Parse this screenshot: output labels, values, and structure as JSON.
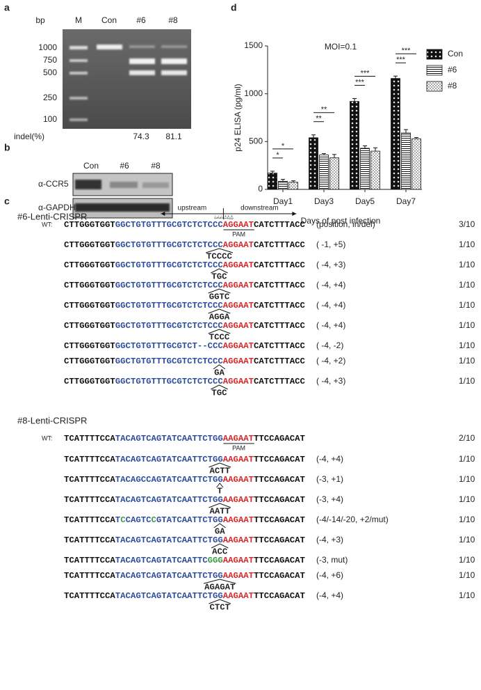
{
  "panel_a": {
    "label": "a",
    "unit": "bp",
    "lanes": [
      "M",
      "Con",
      "#6",
      "#8"
    ],
    "ladder": [
      1000,
      750,
      500,
      250,
      100
    ],
    "indel_label": "indel(%)",
    "indel": [
      74.3,
      81.1
    ]
  },
  "panel_b": {
    "label": "b",
    "lanes": [
      "Con",
      "#6",
      "#8"
    ],
    "rows": [
      "α-CCR5",
      "α-GAPDH"
    ]
  },
  "chart_data": {
    "type": "bar",
    "label": "d",
    "title": "MOI=0.1",
    "ylabel": "p24 ELISA (pg/ml)",
    "xlabel": "Days of post infection",
    "categories": [
      "Day1",
      "Day3",
      "Day5",
      "Day7"
    ],
    "series": [
      {
        "name": "Con",
        "pattern": "crosshatch",
        "values": [
          170,
          540,
          920,
          1160
        ],
        "errors": [
          20,
          30,
          30,
          25
        ]
      },
      {
        "name": "#6",
        "pattern": "hlines",
        "values": [
          85,
          360,
          430,
          590
        ],
        "errors": [
          20,
          15,
          25,
          35
        ]
      },
      {
        "name": "#8",
        "pattern": "dots",
        "values": [
          75,
          330,
          400,
          530
        ],
        "errors": [
          15,
          35,
          35,
          12
        ]
      }
    ],
    "ylim": [
      0,
      1500
    ],
    "yticks": [
      0,
      500,
      1000,
      1500
    ],
    "annotations": [
      {
        "text": "*",
        "category": 0,
        "series": [
          0,
          1
        ]
      },
      {
        "text": "*",
        "category": 0,
        "series": [
          0,
          2
        ]
      },
      {
        "text": "**",
        "category": 1,
        "series": [
          0,
          1
        ]
      },
      {
        "text": "**",
        "category": 1,
        "series": [
          0,
          2
        ]
      },
      {
        "text": "***",
        "category": 2,
        "series": [
          0,
          1
        ]
      },
      {
        "text": "***",
        "category": 2,
        "series": [
          0,
          2
        ]
      },
      {
        "text": "***",
        "category": 3,
        "series": [
          0,
          1
        ]
      },
      {
        "text": "***",
        "category": 3,
        "series": [
          0,
          2
        ]
      }
    ]
  },
  "panel_c": {
    "label": "c",
    "colors": {
      "k": "#111111",
      "b": "#2c4c9e",
      "r": "#d8282a",
      "g": "#3c9a46"
    },
    "arrows": {
      "left": "upstream",
      "right": "downstream"
    },
    "position_marks": [
      "-3",
      "-2",
      "-1",
      "+1",
      "+2",
      "+3"
    ],
    "pam": "PAM",
    "wt": "WT:",
    "groups": [
      {
        "title": "#6-Lenti-CRISPR",
        "wt": {
          "seq": [
            [
              "CTTGGGTGGT",
              "k"
            ],
            [
              "GGCTGTGTTTGCGTCTCTCCC",
              "b"
            ],
            [
              "AGGAAT",
              "r"
            ],
            [
              "CATCTTTACC",
              "k"
            ]
          ],
          "note": "(position, in/del)",
          "fraction": "3/10"
        },
        "rows": [
          {
            "seq": [
              [
                "CTTGGGTGGT",
                "k"
              ],
              [
                "GGCTGTGTTTGCGTCTCTCCC",
                "b"
              ],
              [
                "AGGAAT",
                "r"
              ],
              [
                "CATCTTTACC",
                "k"
              ]
            ],
            "insert": "TCCCC",
            "note": "( -1, +5)",
            "fraction": "1/10"
          },
          {
            "seq": [
              [
                "CTTGGGTGGT",
                "k"
              ],
              [
                "GGCTGTGTTTGCGTCTCTCCC",
                "b"
              ],
              [
                "AGGAAT",
                "r"
              ],
              [
                "CATCTTTACC",
                "k"
              ]
            ],
            "insert": "TGC",
            "note": "( -4, +3)",
            "fraction": "1/10"
          },
          {
            "seq": [
              [
                "CTTGGGTGGT",
                "k"
              ],
              [
                "GGCTGTGTTTGCGTCTCTCCC",
                "b"
              ],
              [
                "AGGAAT",
                "r"
              ],
              [
                "CATCTTTACC",
                "k"
              ]
            ],
            "insert": "GGTC",
            "note": "( -4, +4)",
            "fraction": "1/10"
          },
          {
            "seq": [
              [
                "CTTGGGTGGT",
                "k"
              ],
              [
                "GGCTGTGTTTGCGTCTCTCCC",
                "b"
              ],
              [
                "AGGAAT",
                "r"
              ],
              [
                "CATCTTTACC",
                "k"
              ]
            ],
            "insert": "AGGA",
            "note": "( -4, +4)",
            "fraction": "1/10"
          },
          {
            "seq": [
              [
                "CTTGGGTGGT",
                "k"
              ],
              [
                "GGCTGTGTTTGCGTCTCTCCC",
                "b"
              ],
              [
                "AGGAAT",
                "r"
              ],
              [
                "CATCTTTACC",
                "k"
              ]
            ],
            "insert": "TCCC",
            "note": "( -4, +4)",
            "fraction": "1/10"
          },
          {
            "seq": [
              [
                "CTTGGGTGGT",
                "k"
              ],
              [
                "GGCTGTGTTTGCGTCT--CCC",
                "b"
              ],
              [
                "AGGAAT",
                "r"
              ],
              [
                "CATCTTTACC",
                "k"
              ]
            ],
            "note": "( -4, -2)",
            "fraction": "1/10"
          },
          {
            "seq": [
              [
                "CTTGGGTGGT",
                "k"
              ],
              [
                "GGCTGTGTTTGCGTCTCTCCC",
                "b"
              ],
              [
                "AGGAAT",
                "r"
              ],
              [
                "CATCTTTACC",
                "k"
              ]
            ],
            "insert": "GA",
            "note": "( -4, +2)",
            "fraction": "1/10"
          },
          {
            "seq": [
              [
                "CTTGGGTGGT",
                "k"
              ],
              [
                "GGCTGTGTTTGCGTCTCTCCC",
                "b"
              ],
              [
                "AGGAAT",
                "r"
              ],
              [
                "CATCTTTACC",
                "k"
              ]
            ],
            "insert": "TGC",
            "note": "( -4, +3)",
            "fraction": "1/10"
          }
        ]
      },
      {
        "title": "#8-Lenti-CRISPR",
        "wt": {
          "seq": [
            [
              "TCATTTTCCA",
              "k"
            ],
            [
              "TACAGTCAGTATCAATTCTGG",
              "b"
            ],
            [
              "AAGAAT",
              "r"
            ],
            [
              "TTCCAGACAT",
              "k"
            ]
          ],
          "fraction": "2/10"
        },
        "rows": [
          {
            "seq": [
              [
                "TCATTTTCCA",
                "k"
              ],
              [
                "TACAGTCAGTATCAATTCTGG",
                "b"
              ],
              [
                "AAGAAT",
                "r"
              ],
              [
                "TTCCAGACAT",
                "k"
              ]
            ],
            "insert": "ACTT",
            "note": "(-4, +4)",
            "fraction": "1/10"
          },
          {
            "seq": [
              [
                "TCATTTTCCA",
                "k"
              ],
              [
                "TACAGCCAGTATCAATTCTGG",
                "b"
              ],
              [
                "AAGAAT",
                "r"
              ],
              [
                "TTCCAGACAT",
                "k"
              ]
            ],
            "insert": "T",
            "note": "(-3, +1)",
            "fraction": "1/10"
          },
          {
            "seq": [
              [
                "TCATTTTCCA",
                "k"
              ],
              [
                "TACAGTCAGTATCAATTCTGG",
                "b"
              ],
              [
                "AAGAAT",
                "r"
              ],
              [
                "TTCCAGACAT",
                "k"
              ]
            ],
            "insert": "AATT",
            "note": "(-3, +4)",
            "fraction": "1/10"
          },
          {
            "seq": [
              [
                "TCATTTTCCA",
                "k"
              ],
              [
                "T",
                "b"
              ],
              [
                "C",
                "g"
              ],
              [
                "CAGTC",
                "b"
              ],
              [
                "C",
                "g"
              ],
              [
                "GTATCAATTCTGG",
                "b"
              ],
              [
                "AAGAAT",
                "r"
              ],
              [
                "TTCCAGACAT",
                "k"
              ]
            ],
            "insert": "GA",
            "note": "(-4/-14/-20, +2/mut)",
            "fraction": "1/10"
          },
          {
            "seq": [
              [
                "TCATTTTCCA",
                "k"
              ],
              [
                "TACAGTCAGTATCAATTCTGG",
                "b"
              ],
              [
                "AAGAAT",
                "r"
              ],
              [
                "TTCCAGACAT",
                "k"
              ]
            ],
            "insert": "ACC",
            "note": "(-4, +3)",
            "fraction": "1/10"
          },
          {
            "seq": [
              [
                "TCATTTTCCA",
                "k"
              ],
              [
                "TACAGTCAGTATCAATTC",
                "b"
              ],
              [
                "GGG",
                "g"
              ],
              [
                "AAGAAT",
                "r"
              ],
              [
                "TTCCAGACAT",
                "k"
              ]
            ],
            "note": "(-3, mut)",
            "fraction": "1/10"
          },
          {
            "seq": [
              [
                "TCATTTTCCA",
                "k"
              ],
              [
                "TACAGTCAGTATCAATTCTGG",
                "b"
              ],
              [
                "AAGAAT",
                "r"
              ],
              [
                "TTCCAGACAT",
                "k"
              ]
            ],
            "insert": "AGAGAT",
            "note": "(-4, +6)",
            "fraction": "1/10"
          },
          {
            "seq": [
              [
                "TCATTTTCCA",
                "k"
              ],
              [
                "TACAGTCAGTATCAATTCTGG",
                "b"
              ],
              [
                "AAGAAT",
                "r"
              ],
              [
                "TTCCAGACAT",
                "k"
              ]
            ],
            "insert": "CTCT",
            "note": "(-4, +4)",
            "fraction": "1/10"
          }
        ]
      }
    ]
  }
}
